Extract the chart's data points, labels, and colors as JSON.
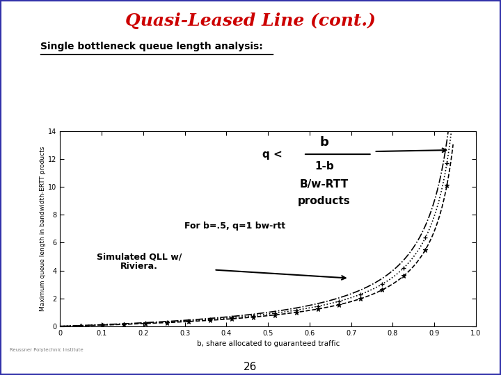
{
  "title": "Quasi-Leased Line (cont.)",
  "subtitle": "Single bottleneck queue length analysis:",
  "title_color": "#cc0000",
  "background_color": "#ffffff",
  "border_color": "#3333aa",
  "xlabel": "b, share allocated to guaranteed traffic",
  "ylabel": "Maximum queue length in bandwidth-ERTT products",
  "xlim": [
    0,
    1
  ],
  "ylim": [
    0,
    14
  ],
  "yticks": [
    0,
    2,
    4,
    6,
    8,
    10,
    12,
    14
  ],
  "xticks": [
    0,
    0.1,
    0.2,
    0.3,
    0.4,
    0.5,
    0.6,
    0.7,
    0.8,
    0.9,
    1.0
  ],
  "annotation_b": "b",
  "annotation_q": "q < ",
  "annotation_frac": "1-b",
  "annotation_bwrtt": "B/w-RTT",
  "annotation_products": "products",
  "annotation_for": "For b=.5, q=1 bw-rtt",
  "annotation_sim1": "Simulated QLL w/",
  "annotation_sim2": "Riviera.",
  "footer_text": "26",
  "watermark": "Reussner Polytechnic Institute"
}
